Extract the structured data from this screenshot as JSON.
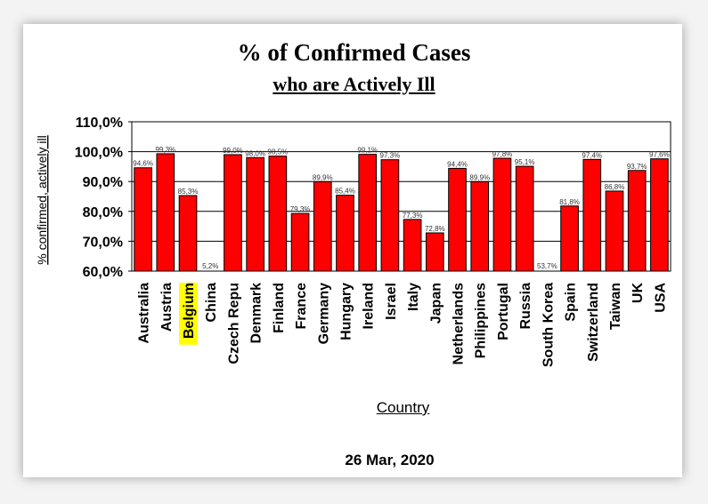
{
  "chart_data": {
    "type": "bar",
    "title": "% of Confirmed Cases",
    "subtitle": "who are Actively Ill",
    "xlabel": "Country",
    "ylabel": "% confirmed, actively ill",
    "footer": "26 Mar, 2020",
    "ylim": [
      60,
      110
    ],
    "yticks": [
      "60,0%",
      "70,0%",
      "80,0%",
      "90,0%",
      "100,0%",
      "110,0%"
    ],
    "ytick_values": [
      60,
      70,
      80,
      90,
      100,
      110
    ],
    "grid": true,
    "bar_color": "#ff0000",
    "highlight_color": "#ffff00",
    "highlight_category": "Belgium",
    "categories": [
      "Australia",
      "Austria",
      "Belgium",
      "China",
      "Czech Repu",
      "Denmark",
      "Finland",
      "France",
      "Germany",
      "Hungary",
      "Ireland",
      "Israel",
      "Italy",
      "Japan",
      "Netherlands",
      "Philippines",
      "Portugal",
      "Russia",
      "South Korea",
      "Spain",
      "Switzerland",
      "Taiwan",
      "UK",
      "USA"
    ],
    "values": [
      94.6,
      99.3,
      85.3,
      5.2,
      99.0,
      98.0,
      98.5,
      79.3,
      89.9,
      85.4,
      99.1,
      97.3,
      77.3,
      72.8,
      94.4,
      89.9,
      97.8,
      95.1,
      53.7,
      81.8,
      97.4,
      86.8,
      93.7,
      97.6
    ],
    "data_labels": [
      "94,6%",
      "99,3%",
      "85,3%",
      "5,2%",
      "99,0%",
      "98,0%",
      "98,5%",
      "79,3%",
      "89,9%",
      "85,4%",
      "99,1%",
      "97,3%",
      "77,3%",
      "72,8%",
      "94,4%",
      "89,9%",
      "97,8%",
      "95,1%",
      "53,7%",
      "81,8%",
      "97,4%",
      "86,8%",
      "93,7%",
      "97,6%"
    ]
  }
}
